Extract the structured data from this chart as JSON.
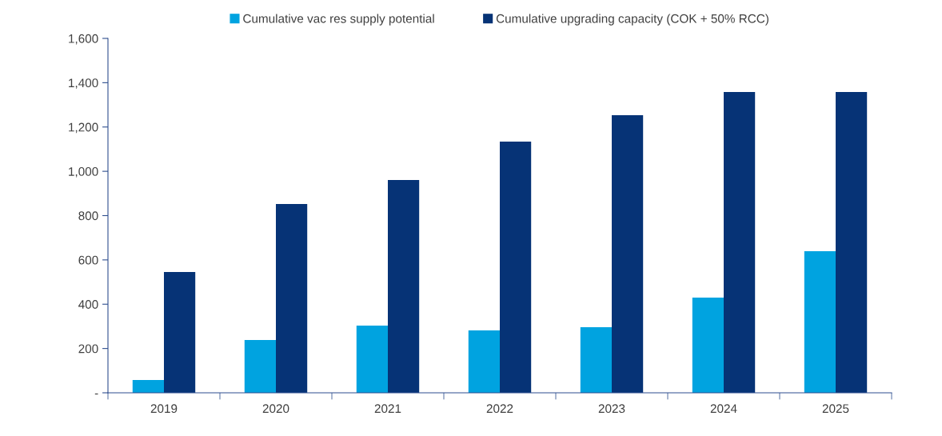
{
  "chart_data": {
    "type": "bar",
    "categories": [
      "2019",
      "2020",
      "2021",
      "2022",
      "2023",
      "2024",
      "2025"
    ],
    "series": [
      {
        "name": "Cumulative vac res supply potential",
        "color": "#00a3e0",
        "values": [
          58,
          238,
          303,
          282,
          296,
          430,
          639
        ]
      },
      {
        "name": "Cumulative upgrading capacity (COK + 50% RCC)",
        "color": "#063376",
        "values": [
          545,
          852,
          961,
          1134,
          1253,
          1358,
          1358
        ]
      }
    ],
    "ylim": [
      0,
      1600
    ],
    "yticks": [
      {
        "value": 0,
        "label": "-"
      },
      200,
      400,
      600,
      800,
      {
        "value": 1000,
        "label": "1,000"
      },
      {
        "value": 1200,
        "label": "1,200"
      },
      {
        "value": 1400,
        "label": "1,400"
      },
      {
        "value": 1600,
        "label": "1,600"
      }
    ],
    "grid": false,
    "legend": "top"
  }
}
